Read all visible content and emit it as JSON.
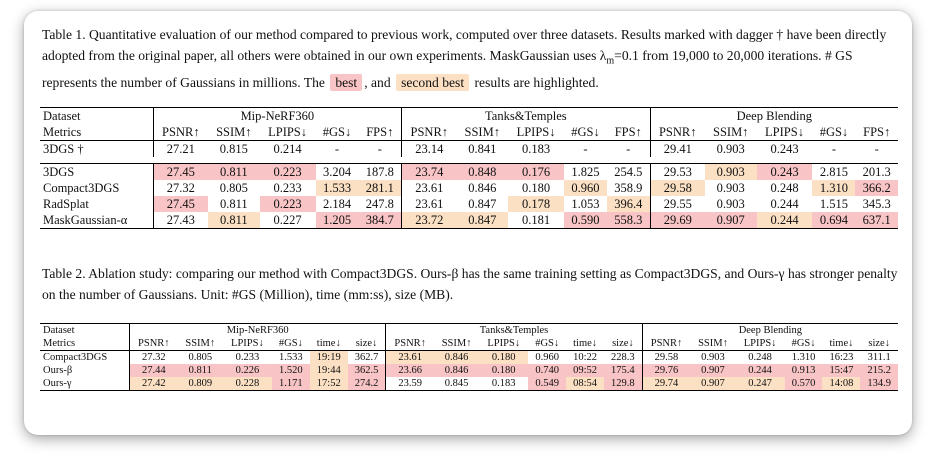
{
  "colors": {
    "best": "#f8c4c6",
    "second": "#fbe0c4"
  },
  "caption1": {
    "part1": "Table 1. Quantitative evaluation of our method compared to previous work, computed over three datasets. Results marked with dagger † have been directly adopted from the original paper, all others were obtained in our own experiments. MaskGaussian uses λ",
    "sub": "m",
    "part2": "=0.1 from 19,000 to 20,000 iterations. # GS represents the number of Gaussians in millions. The",
    "best_label": "best",
    "middle": ", and",
    "second_label": "second best",
    "part3": "results are highlighted."
  },
  "table1": {
    "row_label_dataset": "Dataset",
    "row_label_metrics": "Metrics",
    "datasets": [
      "Mip-NeRF360",
      "Tanks&Temples",
      "Deep Blending"
    ],
    "metrics": [
      "PSNR↑",
      "SSIM↑",
      "LPIPS↓",
      "#GS↓",
      "FPS↑"
    ],
    "rows": [
      {
        "name": "3DGS †",
        "cells": [
          [
            "27.21",
            ""
          ],
          [
            "0.815",
            ""
          ],
          [
            "0.214",
            ""
          ],
          [
            "-",
            ""
          ],
          [
            "-",
            ""
          ],
          [
            "23.14",
            ""
          ],
          [
            "0.841",
            ""
          ],
          [
            "0.183",
            ""
          ],
          [
            "-",
            ""
          ],
          [
            "-",
            ""
          ],
          [
            "29.41",
            ""
          ],
          [
            "0.903",
            ""
          ],
          [
            "0.243",
            ""
          ],
          [
            "-",
            ""
          ],
          [
            "-",
            ""
          ]
        ]
      },
      {
        "name": "3DGS",
        "cells": [
          [
            "27.45",
            "best"
          ],
          [
            "0.811",
            "best"
          ],
          [
            "0.223",
            "best"
          ],
          [
            "3.204",
            ""
          ],
          [
            "187.8",
            ""
          ],
          [
            "23.74",
            "best"
          ],
          [
            "0.848",
            "best"
          ],
          [
            "0.176",
            "best"
          ],
          [
            "1.825",
            ""
          ],
          [
            "254.5",
            ""
          ],
          [
            "29.53",
            ""
          ],
          [
            "0.903",
            "second"
          ],
          [
            "0.243",
            "best"
          ],
          [
            "2.815",
            ""
          ],
          [
            "201.3",
            ""
          ]
        ]
      },
      {
        "name": "Compact3DGS",
        "cells": [
          [
            "27.32",
            ""
          ],
          [
            "0.805",
            ""
          ],
          [
            "0.233",
            ""
          ],
          [
            "1.533",
            "second"
          ],
          [
            "281.1",
            "second"
          ],
          [
            "23.61",
            ""
          ],
          [
            "0.846",
            ""
          ],
          [
            "0.180",
            ""
          ],
          [
            "0.960",
            "second"
          ],
          [
            "358.9",
            ""
          ],
          [
            "29.58",
            "second"
          ],
          [
            "0.903",
            ""
          ],
          [
            "0.248",
            ""
          ],
          [
            "1.310",
            "second"
          ],
          [
            "366.2",
            "best"
          ]
        ]
      },
      {
        "name": "RadSplat",
        "cells": [
          [
            "27.45",
            "best"
          ],
          [
            "0.811",
            ""
          ],
          [
            "0.223",
            "best"
          ],
          [
            "2.184",
            ""
          ],
          [
            "247.8",
            ""
          ],
          [
            "23.61",
            ""
          ],
          [
            "0.847",
            ""
          ],
          [
            "0.178",
            "second"
          ],
          [
            "1.053",
            ""
          ],
          [
            "396.4",
            "second"
          ],
          [
            "29.55",
            ""
          ],
          [
            "0.903",
            ""
          ],
          [
            "0.244",
            ""
          ],
          [
            "1.515",
            ""
          ],
          [
            "345.3",
            ""
          ]
        ]
      },
      {
        "name": "MaskGaussian-α",
        "cells": [
          [
            "27.43",
            ""
          ],
          [
            "0.811",
            "second"
          ],
          [
            "0.227",
            ""
          ],
          [
            "1.205",
            "best"
          ],
          [
            "384.7",
            "best"
          ],
          [
            "23.72",
            "second"
          ],
          [
            "0.847",
            "second"
          ],
          [
            "0.181",
            ""
          ],
          [
            "0.590",
            "best"
          ],
          [
            "558.3",
            "best"
          ],
          [
            "29.69",
            "best"
          ],
          [
            "0.907",
            "best"
          ],
          [
            "0.244",
            "second"
          ],
          [
            "0.694",
            "best"
          ],
          [
            "637.1",
            "best"
          ]
        ]
      }
    ]
  },
  "caption2": {
    "part1": "Table 2. Ablation study: comparing our method with Compact3DGS. Ours-",
    "beta": "β",
    "part2": " has the same training setting as Compact3DGS, and Ours-",
    "gamma": "γ",
    "part3": " has stronger penalty on the number of Gaussians. Unit: #GS (Million), time (mm:ss), size (MB)."
  },
  "table2": {
    "row_label_dataset": "Dataset",
    "row_label_metrics": "Metrics",
    "datasets": [
      "Mip-NeRF360",
      "Tanks&Temples",
      "Deep Blending"
    ],
    "metrics": [
      "PSNR↑",
      "SSIM↑",
      "LPIPS↓",
      "#GS↓",
      "time↓",
      "size↓"
    ],
    "rows": [
      {
        "name": "Compact3DGS",
        "cells": [
          [
            "27.32",
            ""
          ],
          [
            "0.805",
            ""
          ],
          [
            "0.233",
            ""
          ],
          [
            "1.533",
            ""
          ],
          [
            "19:19",
            "second"
          ],
          [
            "362.7",
            ""
          ],
          [
            "23.61",
            "second"
          ],
          [
            "0.846",
            "second"
          ],
          [
            "0.180",
            "second"
          ],
          [
            "0.960",
            ""
          ],
          [
            "10:22",
            ""
          ],
          [
            "228.3",
            ""
          ],
          [
            "29.58",
            ""
          ],
          [
            "0.903",
            ""
          ],
          [
            "0.248",
            ""
          ],
          [
            "1.310",
            ""
          ],
          [
            "16:23",
            ""
          ],
          [
            "311.1",
            ""
          ]
        ]
      },
      {
        "name": "Ours-β",
        "cells": [
          [
            "27.44",
            "best"
          ],
          [
            "0.811",
            "best"
          ],
          [
            "0.226",
            "best"
          ],
          [
            "1.520",
            "best"
          ],
          [
            "19:44",
            "second"
          ],
          [
            "362.5",
            "best"
          ],
          [
            "23.66",
            "best"
          ],
          [
            "0.846",
            "best"
          ],
          [
            "0.180",
            "best"
          ],
          [
            "0.740",
            "best"
          ],
          [
            "09:52",
            "best"
          ],
          [
            "175.4",
            "best"
          ],
          [
            "29.76",
            "best"
          ],
          [
            "0.907",
            "best"
          ],
          [
            "0.244",
            "best"
          ],
          [
            "0.913",
            "best"
          ],
          [
            "15:47",
            "best"
          ],
          [
            "215.2",
            "best"
          ]
        ]
      },
      {
        "name": "Ours-γ",
        "cells": [
          [
            "27.42",
            "second"
          ],
          [
            "0.809",
            "second"
          ],
          [
            "0.228",
            "second"
          ],
          [
            "1.171",
            "best"
          ],
          [
            "17:52",
            "second"
          ],
          [
            "274.2",
            "best"
          ],
          [
            "23.59",
            ""
          ],
          [
            "0.845",
            ""
          ],
          [
            "0.183",
            ""
          ],
          [
            "0.549",
            "best"
          ],
          [
            "08:54",
            "second"
          ],
          [
            "129.8",
            "best"
          ],
          [
            "29.74",
            "second"
          ],
          [
            "0.907",
            "second"
          ],
          [
            "0.247",
            "second"
          ],
          [
            "0.570",
            "best"
          ],
          [
            "14:08",
            "second"
          ],
          [
            "134.9",
            "best"
          ]
        ]
      }
    ]
  }
}
